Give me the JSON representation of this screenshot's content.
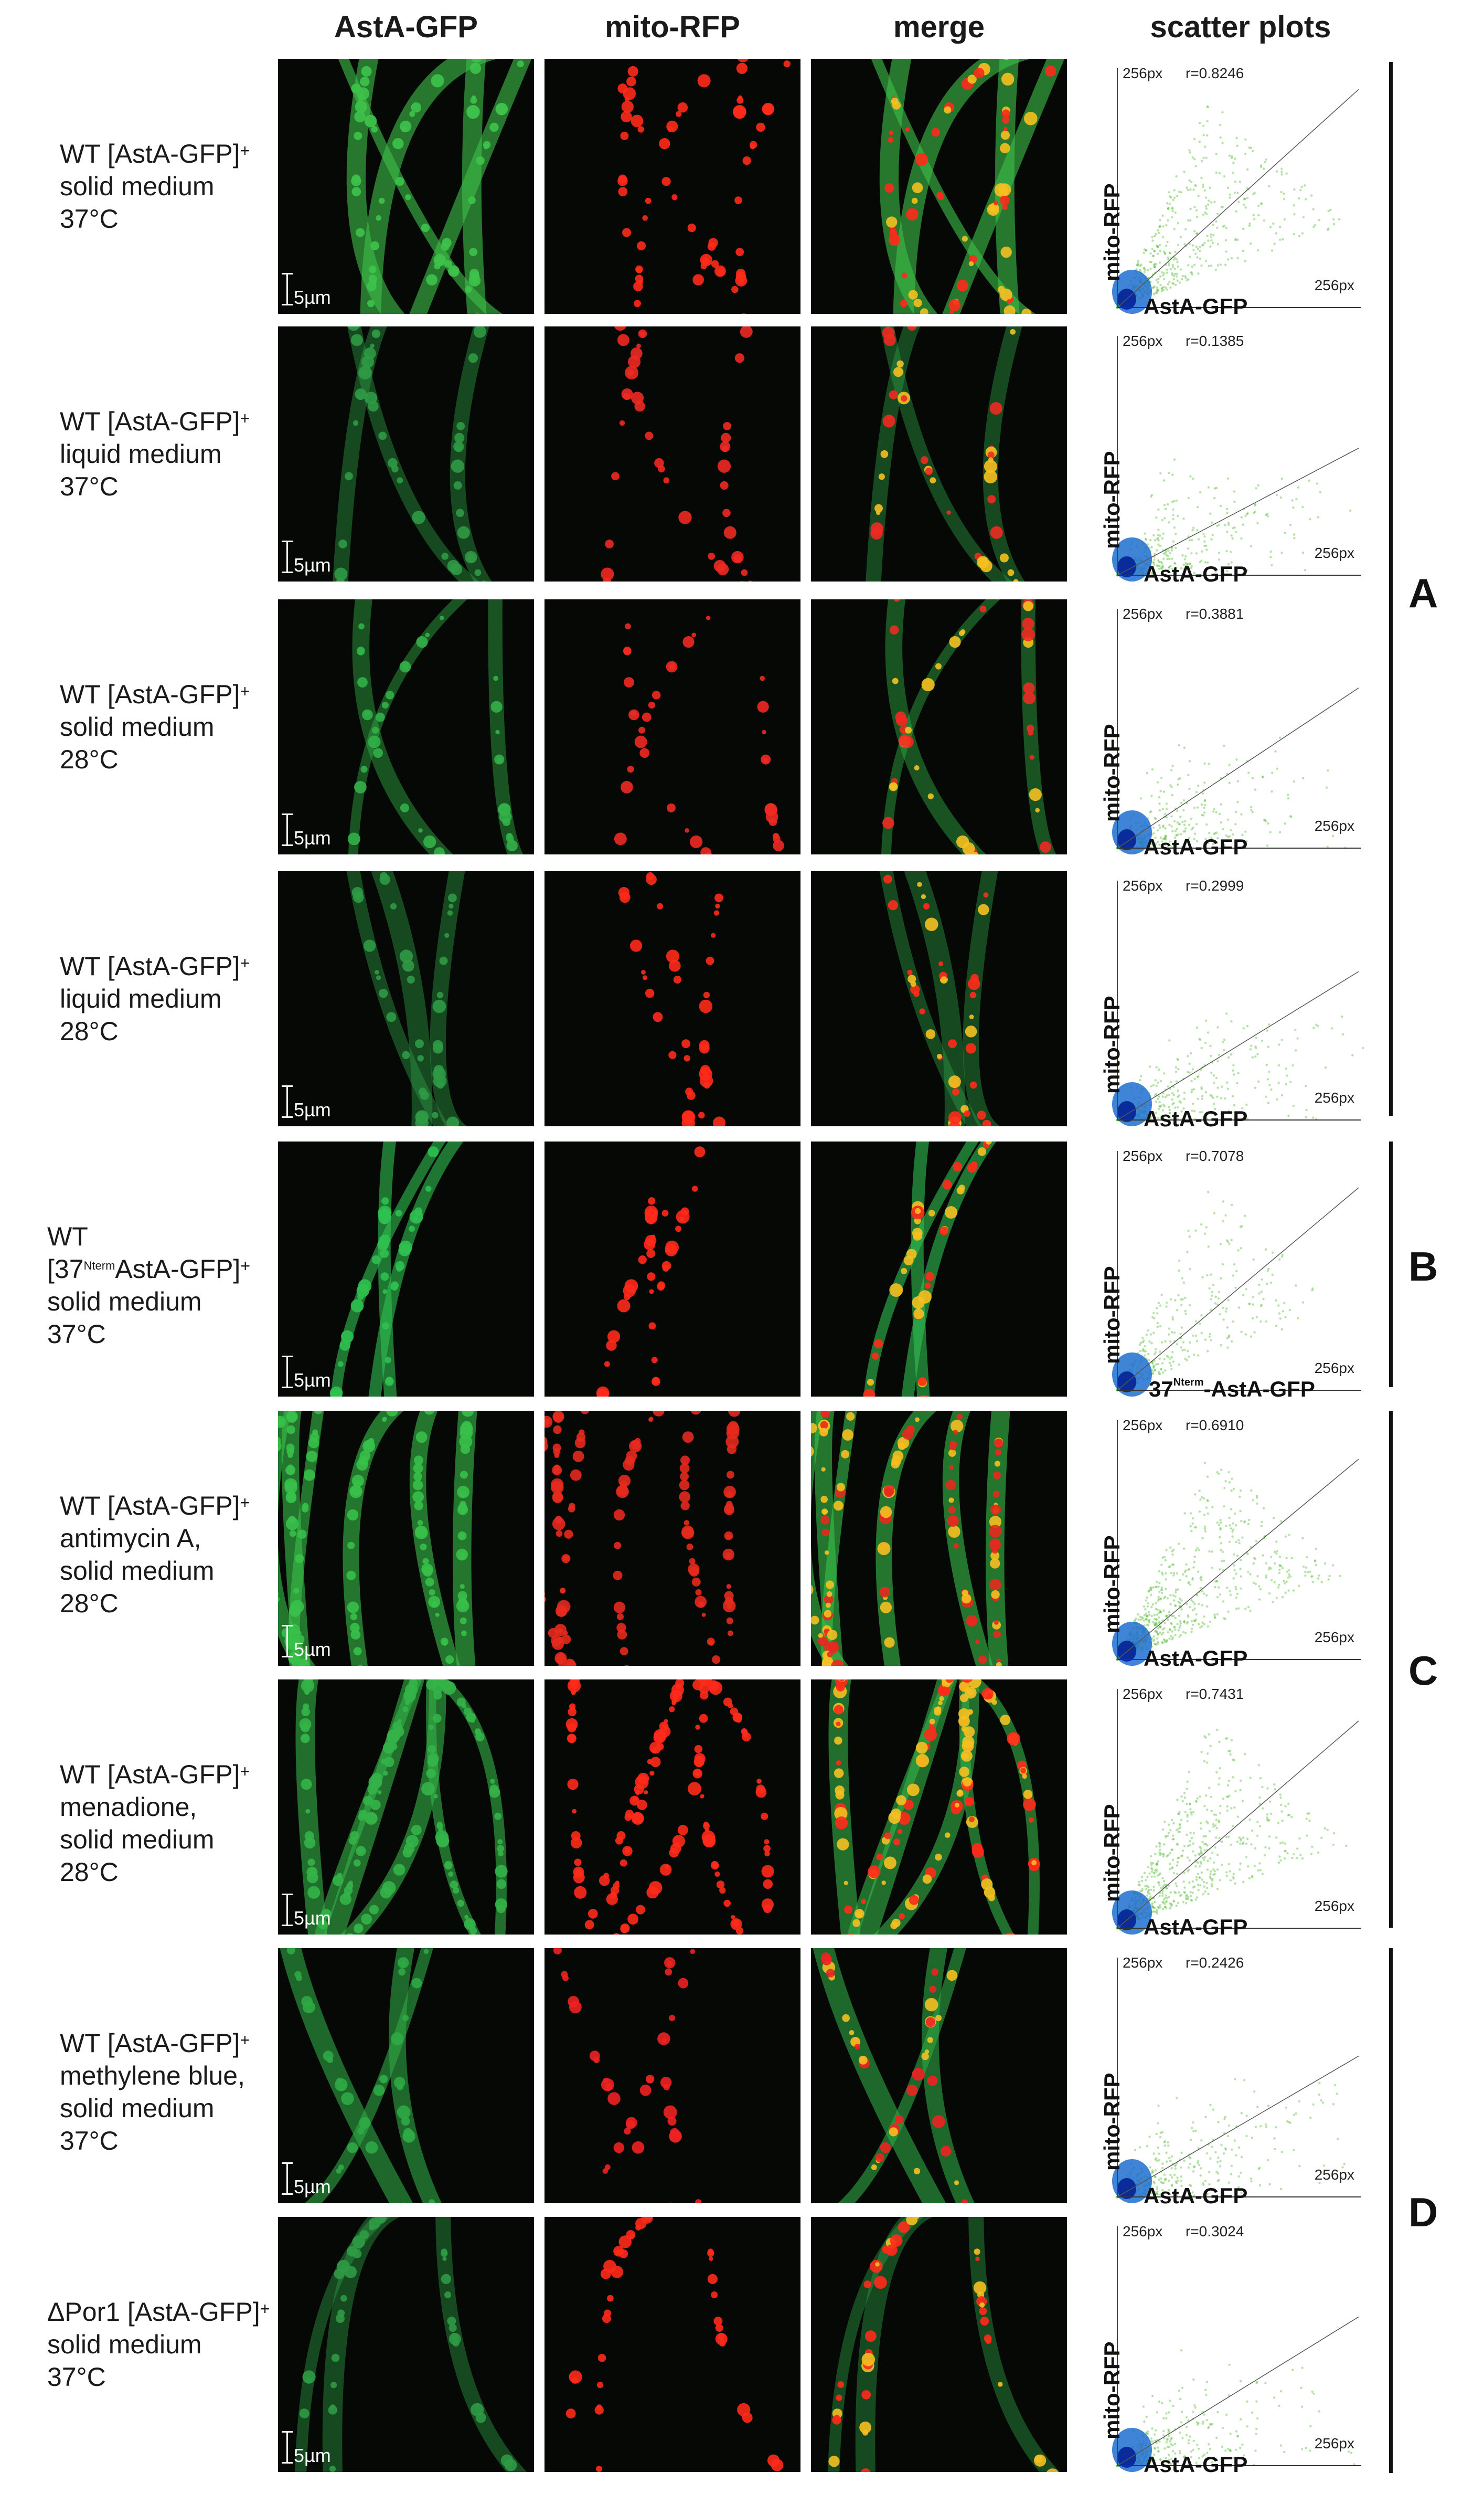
{
  "columns": {
    "c1": "AstA-GFP",
    "c2": "mito-RFP",
    "c3": "merge",
    "c4": "scatter plots"
  },
  "scale_label": "5µm",
  "px_label": "256px",
  "rows": [
    {
      "l1": "WT [AstA-GFP]",
      "sup": "+",
      "l2": "solid medium",
      "l3": "37°C",
      "r": "r=0.8246",
      "x_label": "AstA-GFP",
      "y_label": "mito-RFP",
      "gfp": "#3ec24a",
      "rfp": "#ff2a1a",
      "density": "bright",
      "scatter_r": 0.8246
    },
    {
      "l1": "WT [AstA-GFP]",
      "sup": "+",
      "l2": "liquid medium",
      "l3": "37°C",
      "r": "r=0.1385",
      "x_label": "AstA-GFP",
      "y_label": "mito-RFP",
      "gfp": "#2f9a45",
      "rfp": "#ee2a22",
      "density": "dim",
      "scatter_r": 0.1385
    },
    {
      "l1": "WT [AstA-GFP]",
      "sup": "+",
      "l2": "solid medium",
      "l3": "28°C",
      "r": "r=0.3881",
      "x_label": "AstA-GFP",
      "y_label": "mito-RFP",
      "gfp": "#33b048",
      "rfp": "#ee2a22",
      "density": "dim",
      "scatter_r": 0.3881
    },
    {
      "l1": "WT [AstA-GFP]",
      "sup": "+",
      "l2": "liquid medium",
      "l3": "28°C",
      "r": "r=0.2999",
      "x_label": "AstA-GFP",
      "y_label": "mito-RFP",
      "gfp": "#2f9a45",
      "rfp": "#ff2a1a",
      "density": "dim",
      "scatter_r": 0.2999
    },
    {
      "l1": "WT",
      "l1b": "[37",
      "l1sup": "Nterm",
      "l1c": "AstA-GFP]",
      "sup": "+",
      "l2": "solid medium",
      "l3": "37°C",
      "r": "r=0.7078",
      "x_label": "37",
      "x_sup": "Nterm",
      "x_label2": "-AstA-GFP",
      "y_label": "mito-RFP",
      "gfp": "#2fc050",
      "rfp": "#ff2a1a",
      "density": "dots",
      "scatter_r": 0.7078
    },
    {
      "l1": "WT [AstA-GFP]",
      "sup": "+",
      "l2": "antimycin A,",
      "l2b": "solid medium",
      "l3": "28°C",
      "r": "r=0.6910",
      "x_label": "AstA-GFP",
      "y_label": "mito-RFP",
      "gfp": "#39c04a",
      "rfp": "#e62a1e",
      "density": "dense",
      "scatter_r": 0.691
    },
    {
      "l1": "WT [AstA-GFP]",
      "sup": "+",
      "l2": "menadione,",
      "l2b": "solid medium",
      "l3": "28°C",
      "r": "r=0.7431",
      "x_label": "AstA-GFP",
      "y_label": "mito-RFP",
      "gfp": "#34b248",
      "rfp": "#ff2a1a",
      "density": "dense",
      "scatter_r": 0.7431
    },
    {
      "l1": "WT [AstA-GFP]",
      "sup": "+",
      "l2": "methylene blue,",
      "l2b": "solid medium",
      "l3": "37°C",
      "r": "r=0.2426",
      "x_label": "AstA-GFP",
      "y_label": "mito-RFP",
      "gfp": "#2fa845",
      "rfp": "#ee2222",
      "density": "dots",
      "scatter_r": 0.2426
    },
    {
      "l1": "ΔPor1 [AstA-GFP]",
      "sup": "+",
      "l2": "solid medium",
      "l3": "37°C",
      "r": "r=0.3024",
      "x_label": "AstA-GFP",
      "y_label": "mito-RFP",
      "gfp": "#2f9a45",
      "rfp": "#ff2a1a",
      "density": "dim",
      "scatter_r": 0.3024
    }
  ],
  "groups": [
    {
      "label": "A"
    },
    {
      "label": "B"
    },
    {
      "label": "C"
    },
    {
      "label": "D"
    }
  ]
}
